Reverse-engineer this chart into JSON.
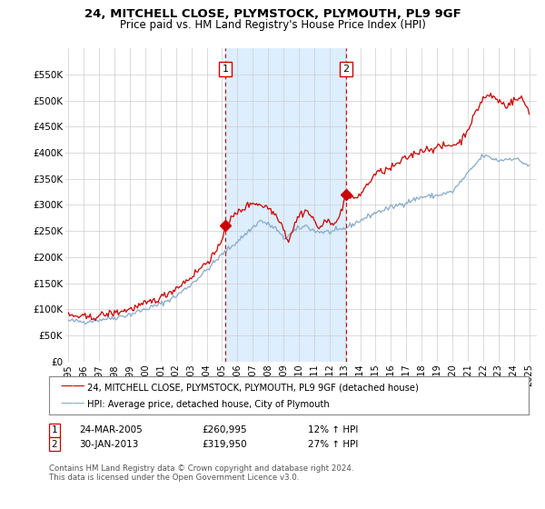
{
  "title": "24, MITCHELL CLOSE, PLYMSTOCK, PLYMOUTH, PL9 9GF",
  "subtitle": "Price paid vs. HM Land Registry's House Price Index (HPI)",
  "legend_line1": "24, MITCHELL CLOSE, PLYMSTOCK, PLYMOUTH, PL9 9GF (detached house)",
  "legend_line2": "HPI: Average price, detached house, City of Plymouth",
  "footer": "Contains HM Land Registry data © Crown copyright and database right 2024.\nThis data is licensed under the Open Government Licence v3.0.",
  "event1_date": "24-MAR-2005",
  "event1_price": "£260,995",
  "event1_hpi": "12% ↑ HPI",
  "event2_date": "30-JAN-2013",
  "event2_price": "£319,950",
  "event2_hpi": "27% ↑ HPI",
  "event1_x": 2005.23,
  "event2_x": 2013.08,
  "ylim": [
    0,
    600000
  ],
  "yticks": [
    0,
    50000,
    100000,
    150000,
    200000,
    250000,
    300000,
    350000,
    400000,
    450000,
    500000,
    550000
  ],
  "xlim": [
    1994.8,
    2025.5
  ],
  "red_color": "#cc0000",
  "blue_color": "#88aacc",
  "shade_color": "#ddeeff",
  "event1_marker_y": 260995,
  "event2_marker_y": 319950
}
